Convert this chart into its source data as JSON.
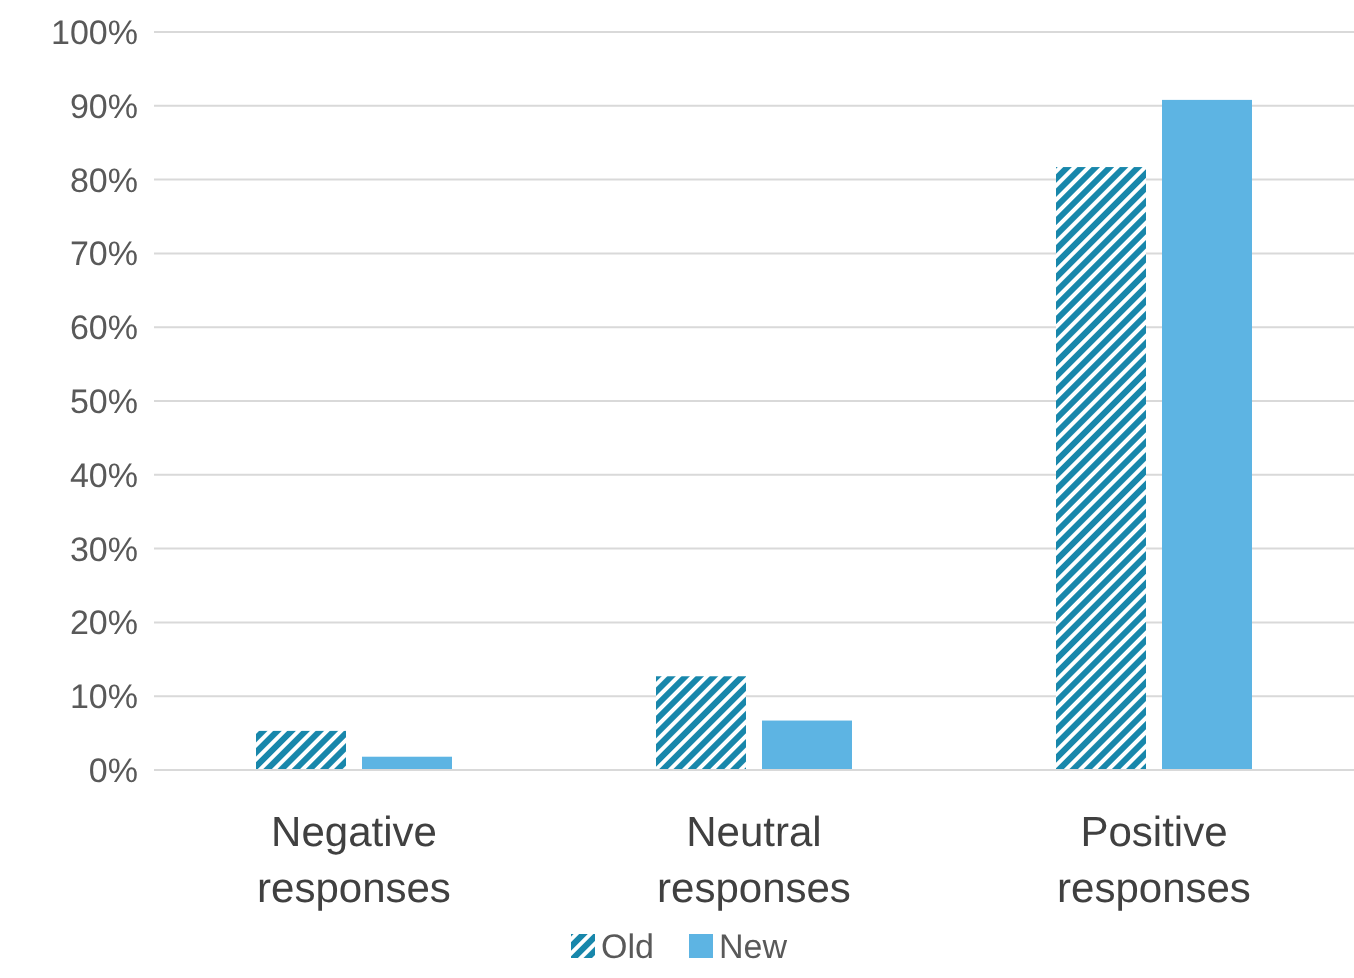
{
  "chart_data": {
    "type": "bar",
    "categories": [
      "Negative responses",
      "Neutral responses",
      "Positive responses"
    ],
    "series": [
      {
        "name": "Old",
        "color": "#1887ab",
        "values": [
          5.3,
          12.7,
          81.7
        ]
      },
      {
        "name": "New",
        "color": "#5db4e3",
        "values": [
          1.8,
          6.7,
          90.8
        ]
      }
    ],
    "ylim": [
      0,
      100
    ],
    "yticks": [
      {
        "value": 0,
        "label": "0%"
      },
      {
        "value": 10,
        "label": "10%"
      },
      {
        "value": 20,
        "label": "20%"
      },
      {
        "value": 30,
        "label": "30%"
      },
      {
        "value": 40,
        "label": "40%"
      },
      {
        "value": 50,
        "label": "50%"
      },
      {
        "value": 60,
        "label": "60%"
      },
      {
        "value": 70,
        "label": "70%"
      },
      {
        "value": 80,
        "label": "80%"
      },
      {
        "value": 90,
        "label": "90%"
      },
      {
        "value": 100,
        "label": "100%"
      }
    ],
    "grid": "y",
    "legend": "bottom"
  }
}
